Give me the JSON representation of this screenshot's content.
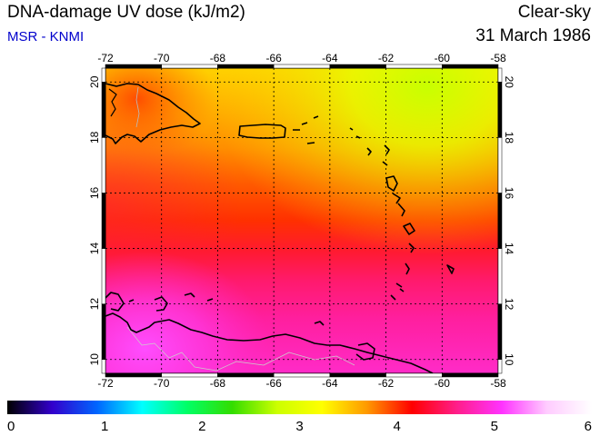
{
  "header": {
    "title": "DNA-damage UV dose (kJ/m2)",
    "source": "MSR - KNMI",
    "condition": "Clear-sky",
    "date": "31 March 1986"
  },
  "map": {
    "lon_range": [
      -72,
      -58
    ],
    "lat_range": [
      9.5,
      20.5
    ],
    "lon_ticks": [
      "-72",
      "-70",
      "-68",
      "-66",
      "-64",
      "-62",
      "-60",
      "-58"
    ],
    "lat_ticks": [
      "10",
      "12",
      "14",
      "16",
      "18",
      "20"
    ],
    "grid": "dotted"
  },
  "colorbar": {
    "ticks": [
      "0",
      "1",
      "2",
      "3",
      "4",
      "5",
      "6"
    ],
    "range": [
      0,
      6
    ],
    "stops": [
      "#000000",
      "#3300cc",
      "#0066ff",
      "#00ffff",
      "#00ff66",
      "#33dd00",
      "#ccff00",
      "#ffff00",
      "#ff9900",
      "#ff0000",
      "#ff1e8a",
      "#ff33ff",
      "#ffccff",
      "#ffffff"
    ]
  }
}
